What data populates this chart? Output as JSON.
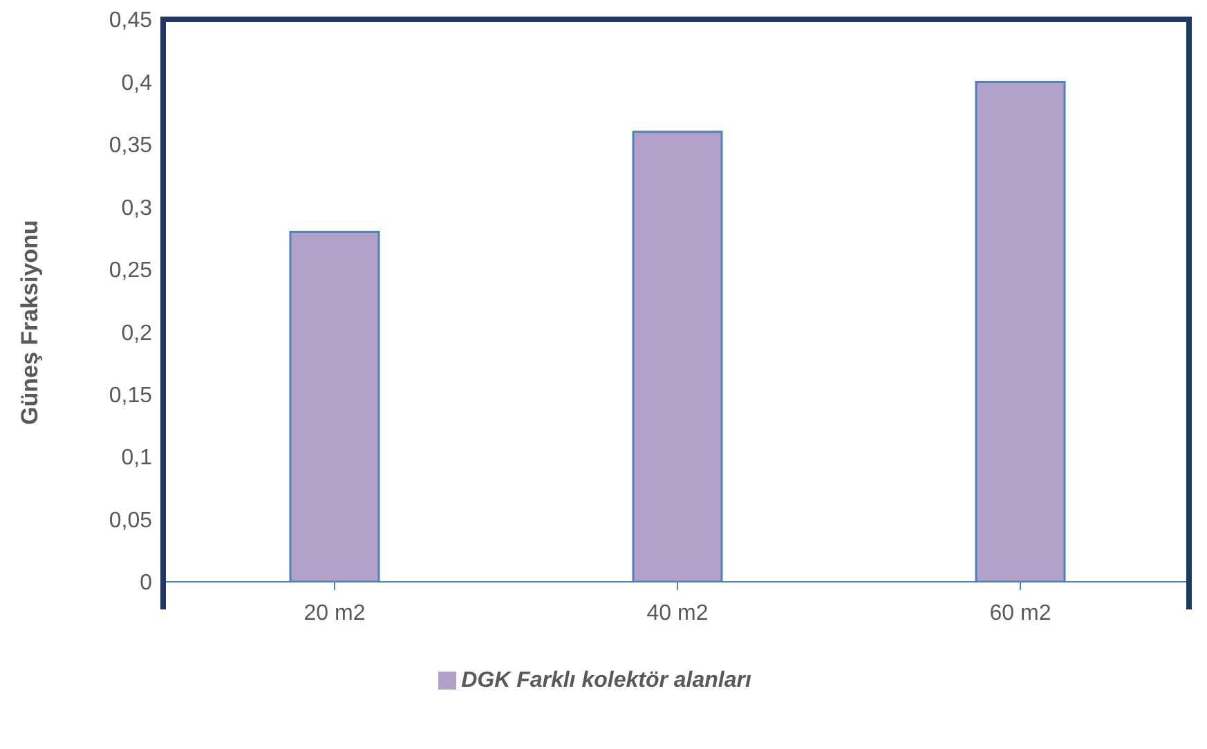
{
  "chart_data": {
    "type": "bar",
    "ylabel": "Güneş Fraksiyonu",
    "categories": [
      "20 m2",
      "40 m2",
      "60 m2"
    ],
    "series": [
      {
        "name": "DGK Farklı kolektör alanları",
        "color": "#b1a0c7",
        "values": [
          0.28,
          0.36,
          0.4
        ]
      }
    ],
    "ylim": [
      0,
      0.45
    ],
    "yticks": [
      0,
      {
        "value": 0.05,
        "label": "0,05"
      },
      {
        "value": 0.1,
        "label": "0,1"
      },
      {
        "value": 0.15,
        "label": "0,15"
      },
      {
        "value": 0.2,
        "label": "0,2"
      },
      {
        "value": 0.25,
        "label": "0,25"
      },
      {
        "value": 0.3,
        "label": "0,3"
      },
      {
        "value": 0.35,
        "label": "0,35"
      },
      {
        "value": 0.4,
        "label": "0,4"
      },
      {
        "value": 0.45,
        "label": "0,45"
      }
    ],
    "grid": false,
    "legend": "bottom"
  }
}
